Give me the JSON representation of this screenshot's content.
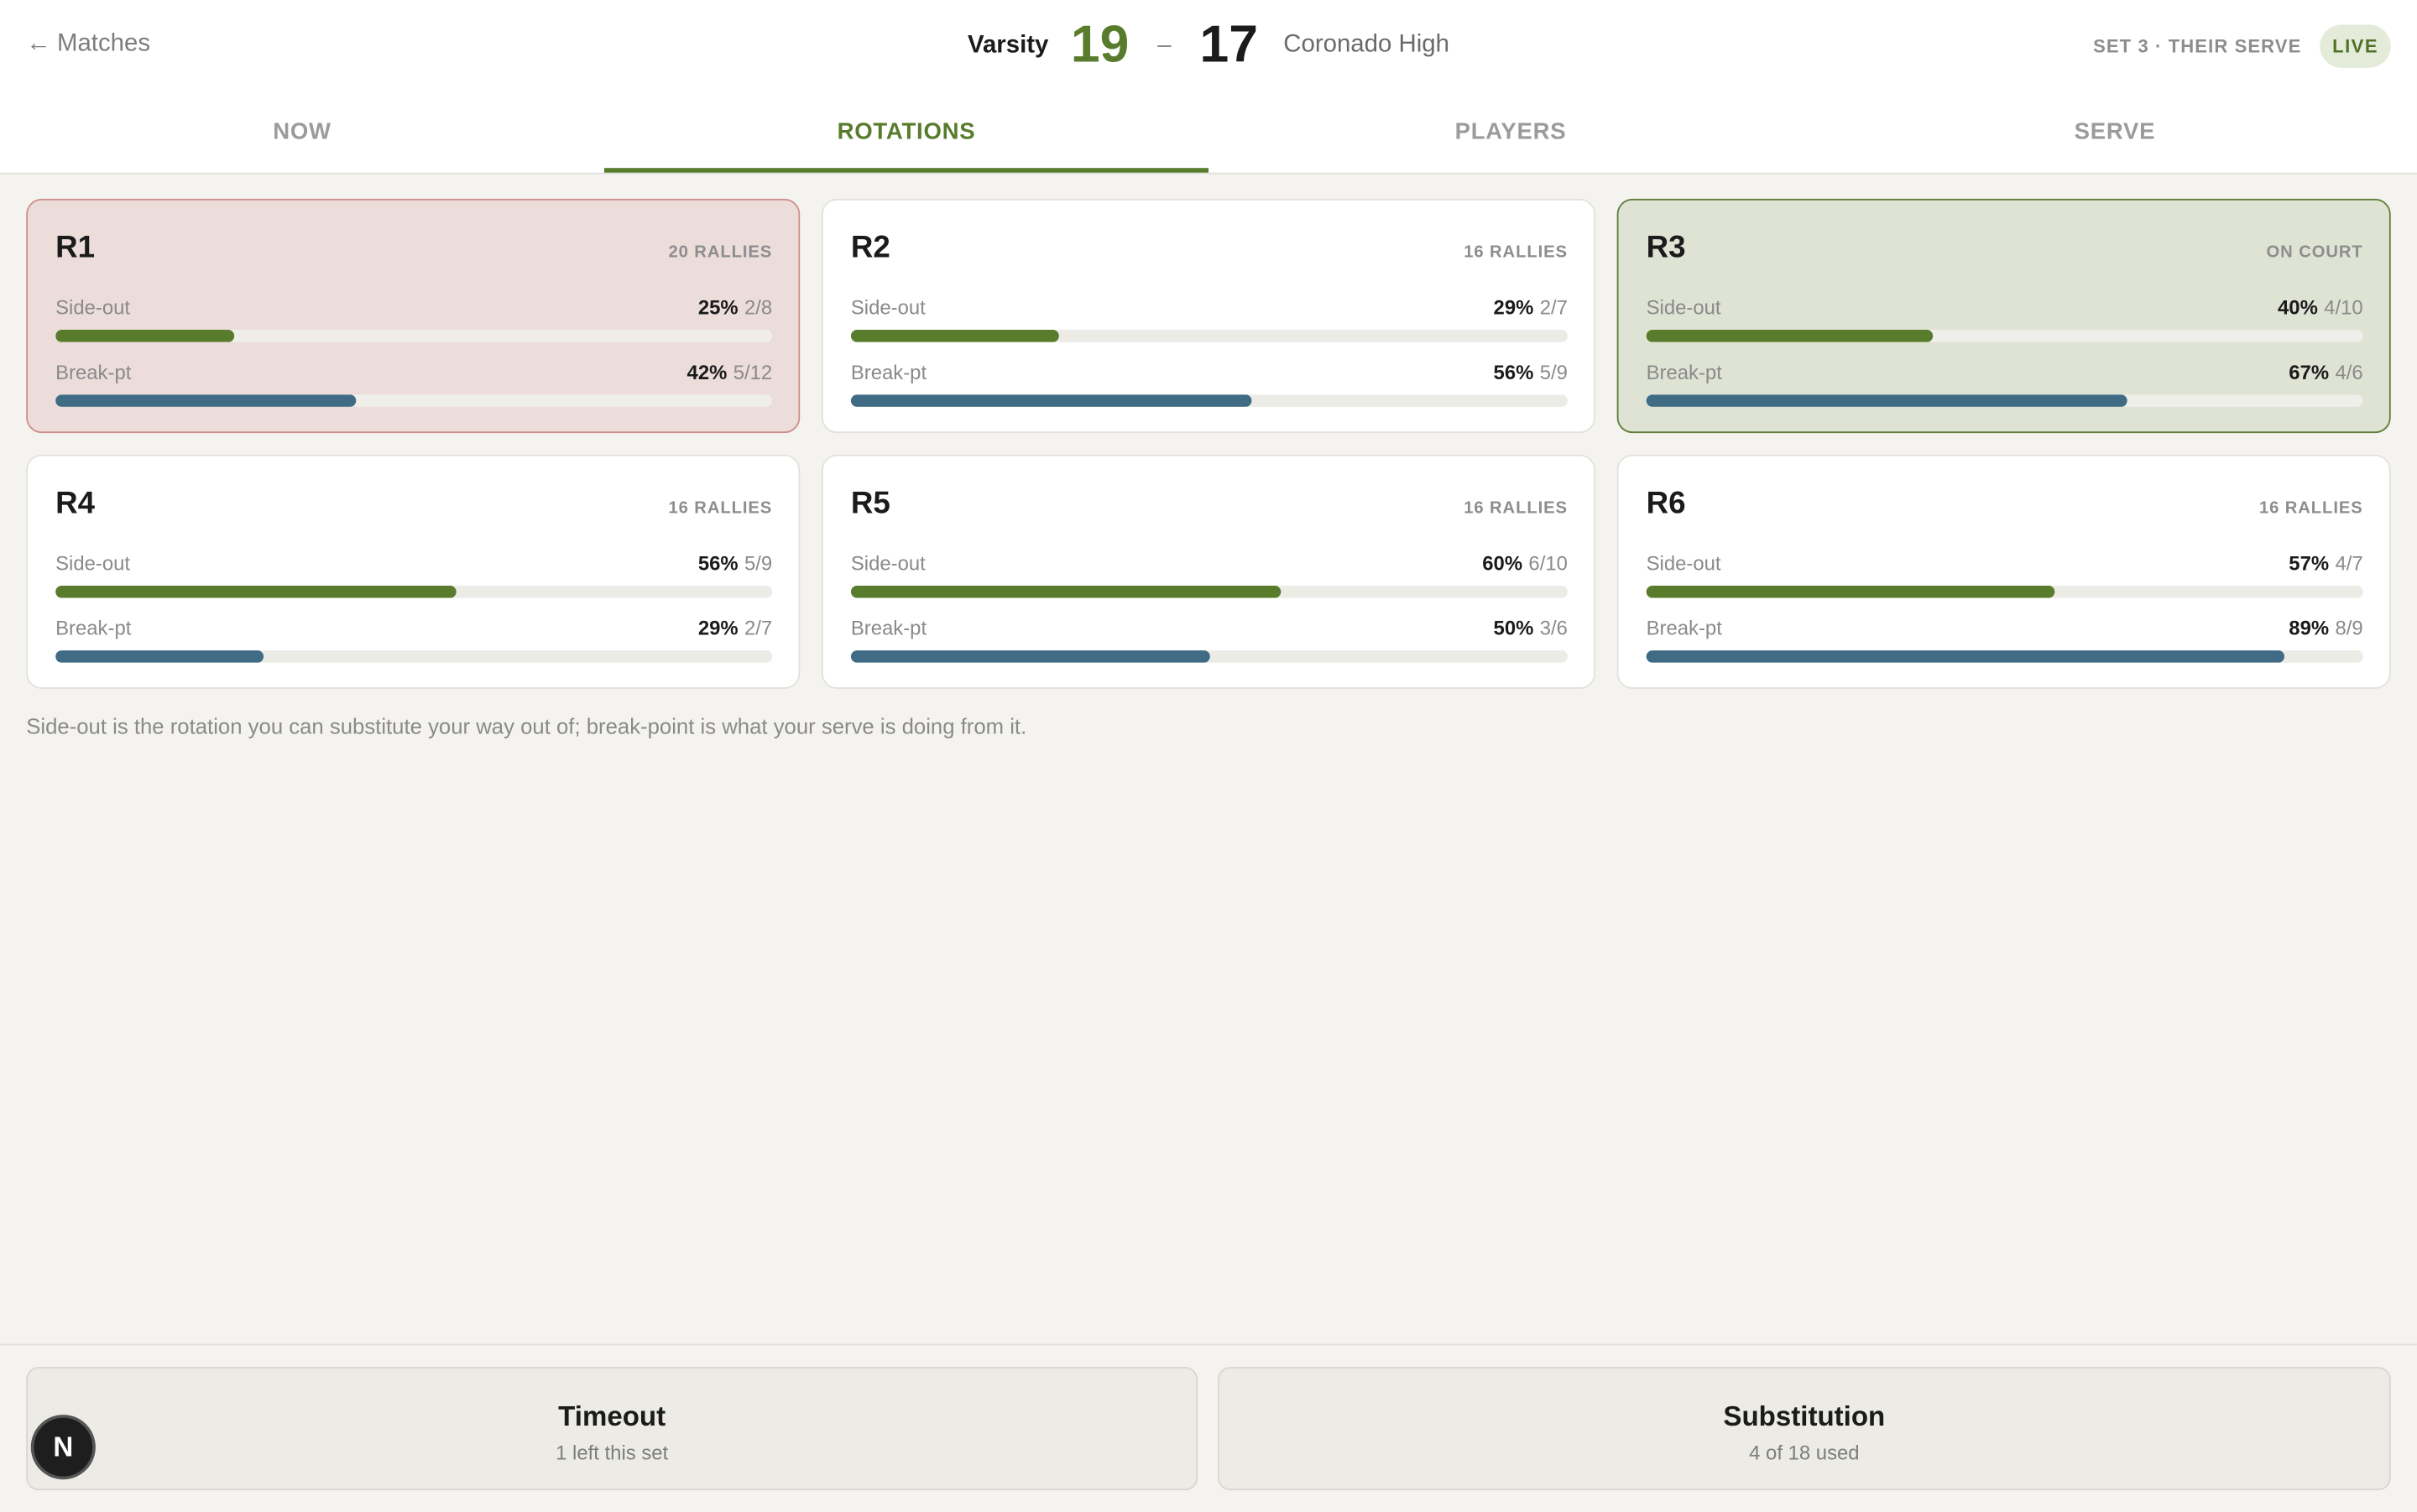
{
  "header": {
    "back_arrow": "←",
    "back_label": "Matches",
    "home_team": "Varsity",
    "home_score": "19",
    "score_dash": "–",
    "away_score": "17",
    "away_team": "Coronado High",
    "set_status": "SET 3 · THEIR SERVE",
    "live_badge": "LIVE"
  },
  "tabs": [
    {
      "label": "NOW",
      "active": false
    },
    {
      "label": "ROTATIONS",
      "active": true
    },
    {
      "label": "PLAYERS",
      "active": false
    },
    {
      "label": "SERVE",
      "active": false
    }
  ],
  "stat_labels": {
    "side_out": "Side-out",
    "break_pt": "Break-pt"
  },
  "rotations": [
    {
      "name": "R1",
      "tag": "20 RALLIES",
      "state": "warn",
      "side_out": {
        "pct": "25%",
        "frac": "2/8",
        "value": 25
      },
      "break_pt": {
        "pct": "42%",
        "frac": "5/12",
        "value": 42
      }
    },
    {
      "name": "R2",
      "tag": "16 RALLIES",
      "state": "normal",
      "side_out": {
        "pct": "29%",
        "frac": "2/7",
        "value": 29
      },
      "break_pt": {
        "pct": "56%",
        "frac": "5/9",
        "value": 56
      }
    },
    {
      "name": "R3",
      "tag": "ON COURT",
      "state": "oncourt",
      "side_out": {
        "pct": "40%",
        "frac": "4/10",
        "value": 40
      },
      "break_pt": {
        "pct": "67%",
        "frac": "4/6",
        "value": 67
      }
    },
    {
      "name": "R4",
      "tag": "16 RALLIES",
      "state": "normal",
      "side_out": {
        "pct": "56%",
        "frac": "5/9",
        "value": 56
      },
      "break_pt": {
        "pct": "29%",
        "frac": "2/7",
        "value": 29
      }
    },
    {
      "name": "R5",
      "tag": "16 RALLIES",
      "state": "normal",
      "side_out": {
        "pct": "60%",
        "frac": "6/10",
        "value": 60
      },
      "break_pt": {
        "pct": "50%",
        "frac": "3/6",
        "value": 50
      }
    },
    {
      "name": "R6",
      "tag": "16 RALLIES",
      "state": "normal",
      "side_out": {
        "pct": "57%",
        "frac": "4/7",
        "value": 57
      },
      "break_pt": {
        "pct": "89%",
        "frac": "8/9",
        "value": 89
      }
    }
  ],
  "note": "Side-out is the rotation you can substitute your way out of; break-point is what your serve is doing from it.",
  "footer": {
    "timeout_title": "Timeout",
    "timeout_sub": "1 left this set",
    "sub_title": "Substitution",
    "sub_sub": "4 of 18 used"
  },
  "avatar_letter": "N",
  "colors": {
    "accent_green": "#587c2c",
    "breakpoint_blue": "#3f6b85",
    "warn_bg": "#ecdddb",
    "oncourt_bg": "#dfe3d4"
  }
}
